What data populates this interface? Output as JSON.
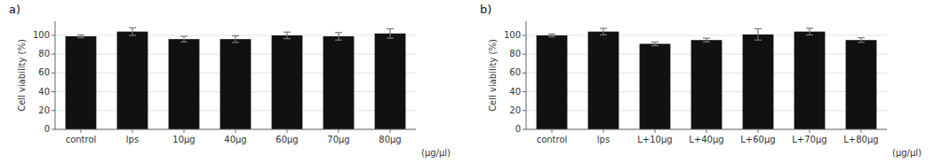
{
  "chart_data": [
    {
      "type": "bar",
      "title": "a)",
      "categories": [
        "control",
        "lps",
        "10μg",
        "40μg",
        "60μg",
        "70μg",
        "80μg"
      ],
      "values": [
        99,
        104,
        96,
        96,
        100,
        99,
        102
      ],
      "errors": [
        1.5,
        4,
        3,
        3.5,
        3.5,
        4,
        5
      ],
      "xlabel": "(μg/μl)",
      "ylabel": "Cell viability (%)",
      "ylim": [
        0,
        115
      ],
      "yticks": [
        0,
        20,
        40,
        60,
        80,
        100
      ],
      "color": "#111111"
    },
    {
      "type": "bar",
      "title": "b)",
      "categories": [
        "control",
        "lps",
        "L+10μg",
        "L+40μg",
        "L+60μg",
        "L+70μg",
        "L+80μg"
      ],
      "values": [
        100,
        104,
        91,
        95,
        101,
        104,
        95
      ],
      "errors": [
        1.5,
        3.5,
        2,
        2,
        6,
        3.5,
        2.5
      ],
      "xlabel": "(μg/μl)",
      "ylabel": "Cell viability (%)",
      "ylim": [
        0,
        115
      ],
      "yticks": [
        0,
        20,
        40,
        60,
        80,
        100
      ],
      "color": "#111111"
    }
  ]
}
